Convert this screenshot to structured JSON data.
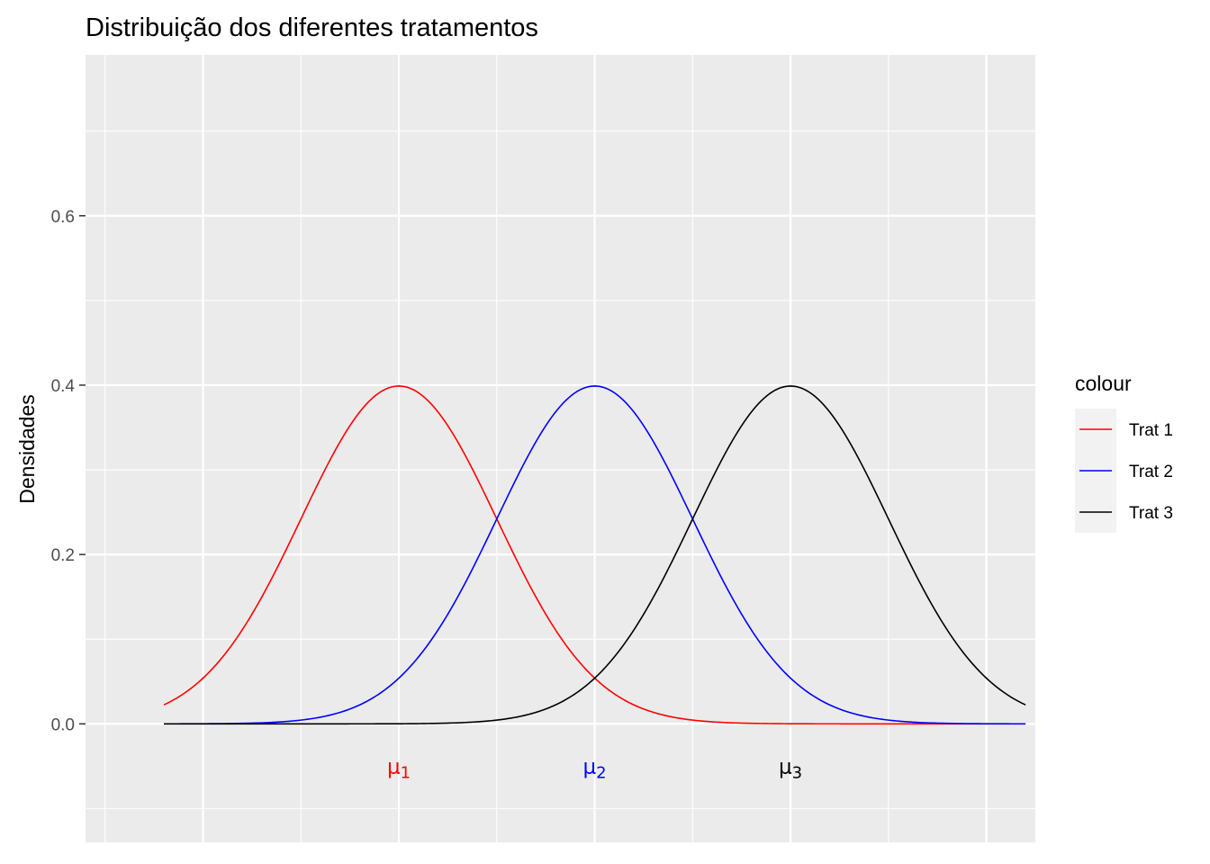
{
  "chart_data": {
    "type": "line",
    "title": "Distribuição dos diferentes tratamentos",
    "xlabel": "",
    "ylabel": "Densidades",
    "xlim": [
      -3.2,
      6.5
    ],
    "ylim": [
      -0.14,
      0.79
    ],
    "yticks": [
      0.0,
      0.2,
      0.4,
      0.6
    ],
    "ytick_labels": [
      "0.0",
      "0.2",
      "0.4",
      "0.6"
    ],
    "grid": true,
    "legend": {
      "title": "colour",
      "placement": "right"
    },
    "x_range": [
      -2.4,
      6.4
    ],
    "series": [
      {
        "name": "Trat 1",
        "color": "#ff0000",
        "distribution": "normal",
        "mean": 0,
        "sd": 1
      },
      {
        "name": "Trat 2",
        "color": "#0000ff",
        "distribution": "normal",
        "mean": 2,
        "sd": 1
      },
      {
        "name": "Trat 3",
        "color": "#000000",
        "distribution": "normal",
        "mean": 4,
        "sd": 1
      }
    ],
    "annotations": [
      {
        "symbol": "μ",
        "subscript": "1",
        "x": 0,
        "y": -0.05,
        "color": "#ff0000"
      },
      {
        "symbol": "μ",
        "subscript": "2",
        "x": 2,
        "y": -0.05,
        "color": "#0000ff"
      },
      {
        "symbol": "μ",
        "subscript": "3",
        "x": 4,
        "y": -0.05,
        "color": "#000000"
      }
    ]
  }
}
